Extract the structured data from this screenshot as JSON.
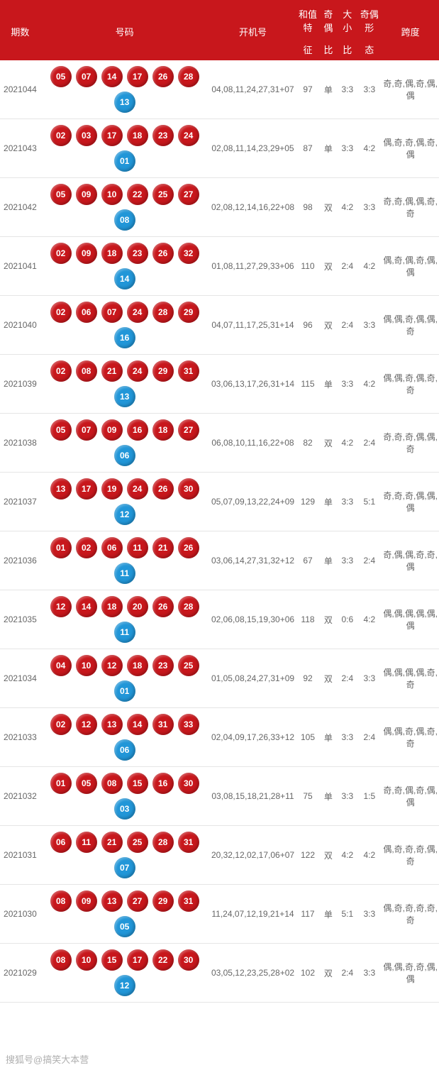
{
  "headers": {
    "period": "期数",
    "numbers": "号码",
    "machine": "开机号",
    "sum_feature": "和值特",
    "sum_sub": "征",
    "odd_even": "奇偶",
    "odd_even_sub": "比",
    "big_small": "大小",
    "big_small_sub": "比",
    "odd_even_shape": "奇偶形",
    "odd_even_shape_sub": "态",
    "span": "跨度"
  },
  "column_widths": {
    "period": 55,
    "numbers": 230,
    "machine": 120,
    "sum": 30,
    "odd_even": 26,
    "big_small": 26,
    "shape": 34,
    "span": 78
  },
  "colors": {
    "header_bg": "#c8171c",
    "header_text": "#ffffff",
    "red_ball": "#c8171c",
    "blue_ball": "#2196d8",
    "border": "#e5e5e5",
    "body_text": "#666666"
  },
  "watermark": "搜狐号@搞笑大本营",
  "rows": [
    {
      "period": "2021044",
      "red": [
        "05",
        "07",
        "14",
        "17",
        "26",
        "28"
      ],
      "blue": "13",
      "machine": "04,08,11,24,27,31+07",
      "sum": "97",
      "oe_feature": "单",
      "oe_ratio": "3:3",
      "bs_ratio": "3:3",
      "span": "奇,奇,偶,奇,偶,偶"
    },
    {
      "period": "2021043",
      "red": [
        "02",
        "03",
        "17",
        "18",
        "23",
        "24"
      ],
      "blue": "01",
      "machine": "02,08,11,14,23,29+05",
      "sum": "87",
      "oe_feature": "单",
      "oe_ratio": "3:3",
      "bs_ratio": "4:2",
      "span": "偶,奇,奇,偶,奇,偶"
    },
    {
      "period": "2021042",
      "red": [
        "05",
        "09",
        "10",
        "22",
        "25",
        "27"
      ],
      "blue": "08",
      "machine": "02,08,12,14,16,22+08",
      "sum": "98",
      "oe_feature": "双",
      "oe_ratio": "4:2",
      "bs_ratio": "3:3",
      "span": "奇,奇,偶,偶,奇,奇"
    },
    {
      "period": "2021041",
      "red": [
        "02",
        "09",
        "18",
        "23",
        "26",
        "32"
      ],
      "blue": "14",
      "machine": "01,08,11,27,29,33+06",
      "sum": "110",
      "oe_feature": "双",
      "oe_ratio": "2:4",
      "bs_ratio": "4:2",
      "span": "偶,奇,偶,奇,偶,偶"
    },
    {
      "period": "2021040",
      "red": [
        "02",
        "06",
        "07",
        "24",
        "28",
        "29"
      ],
      "blue": "16",
      "machine": "04,07,11,17,25,31+14",
      "sum": "96",
      "oe_feature": "双",
      "oe_ratio": "2:4",
      "bs_ratio": "3:3",
      "span": "偶,偶,奇,偶,偶,奇"
    },
    {
      "period": "2021039",
      "red": [
        "02",
        "08",
        "21",
        "24",
        "29",
        "31"
      ],
      "blue": "13",
      "machine": "03,06,13,17,26,31+14",
      "sum": "115",
      "oe_feature": "单",
      "oe_ratio": "3:3",
      "bs_ratio": "4:2",
      "span": "偶,偶,奇,偶,奇,奇"
    },
    {
      "period": "2021038",
      "red": [
        "05",
        "07",
        "09",
        "16",
        "18",
        "27"
      ],
      "blue": "06",
      "machine": "06,08,10,11,16,22+08",
      "sum": "82",
      "oe_feature": "双",
      "oe_ratio": "4:2",
      "bs_ratio": "2:4",
      "span": "奇,奇,奇,偶,偶,奇"
    },
    {
      "period": "2021037",
      "red": [
        "13",
        "17",
        "19",
        "24",
        "26",
        "30"
      ],
      "blue": "12",
      "machine": "05,07,09,13,22,24+09",
      "sum": "129",
      "oe_feature": "单",
      "oe_ratio": "3:3",
      "bs_ratio": "5:1",
      "span": "奇,奇,奇,偶,偶,偶"
    },
    {
      "period": "2021036",
      "red": [
        "01",
        "02",
        "06",
        "11",
        "21",
        "26"
      ],
      "blue": "11",
      "machine": "03,06,14,27,31,32+12",
      "sum": "67",
      "oe_feature": "单",
      "oe_ratio": "3:3",
      "bs_ratio": "2:4",
      "span": "奇,偶,偶,奇,奇,偶"
    },
    {
      "period": "2021035",
      "red": [
        "12",
        "14",
        "18",
        "20",
        "26",
        "28"
      ],
      "blue": "11",
      "machine": "02,06,08,15,19,30+06",
      "sum": "118",
      "oe_feature": "双",
      "oe_ratio": "0:6",
      "bs_ratio": "4:2",
      "span": "偶,偶,偶,偶,偶,偶"
    },
    {
      "period": "2021034",
      "red": [
        "04",
        "10",
        "12",
        "18",
        "23",
        "25"
      ],
      "blue": "01",
      "machine": "01,05,08,24,27,31+09",
      "sum": "92",
      "oe_feature": "双",
      "oe_ratio": "2:4",
      "bs_ratio": "3:3",
      "span": "偶,偶,偶,偶,奇,奇"
    },
    {
      "period": "2021033",
      "red": [
        "02",
        "12",
        "13",
        "14",
        "31",
        "33"
      ],
      "blue": "06",
      "machine": "02,04,09,17,26,33+12",
      "sum": "105",
      "oe_feature": "单",
      "oe_ratio": "3:3",
      "bs_ratio": "2:4",
      "span": "偶,偶,奇,偶,奇,奇"
    },
    {
      "period": "2021032",
      "red": [
        "01",
        "05",
        "08",
        "15",
        "16",
        "30"
      ],
      "blue": "03",
      "machine": "03,08,15,18,21,28+11",
      "sum": "75",
      "oe_feature": "单",
      "oe_ratio": "3:3",
      "bs_ratio": "1:5",
      "span": "奇,奇,偶,奇,偶,偶"
    },
    {
      "period": "2021031",
      "red": [
        "06",
        "11",
        "21",
        "25",
        "28",
        "31"
      ],
      "blue": "07",
      "machine": "20,32,12,02,17,06+07",
      "sum": "122",
      "oe_feature": "双",
      "oe_ratio": "4:2",
      "bs_ratio": "4:2",
      "span": "偶,奇,奇,奇,偶,奇"
    },
    {
      "period": "2021030",
      "red": [
        "08",
        "09",
        "13",
        "27",
        "29",
        "31"
      ],
      "blue": "05",
      "machine": "11,24,07,12,19,21+14",
      "sum": "117",
      "oe_feature": "单",
      "oe_ratio": "5:1",
      "bs_ratio": "3:3",
      "span": "偶,奇,奇,奇,奇,奇"
    },
    {
      "period": "2021029",
      "red": [
        "08",
        "10",
        "15",
        "17",
        "22",
        "30"
      ],
      "blue": "12",
      "machine": "03,05,12,23,25,28+02",
      "sum": "102",
      "oe_feature": "双",
      "oe_ratio": "2:4",
      "bs_ratio": "3:3",
      "span": "偶,偶,奇,奇,偶,偶"
    }
  ]
}
